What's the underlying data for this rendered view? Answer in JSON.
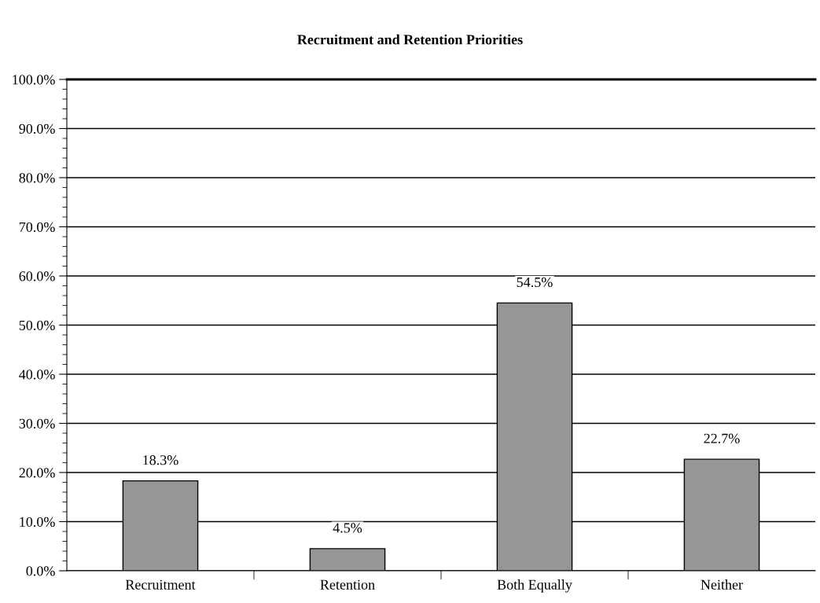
{
  "chart_data": {
    "type": "bar",
    "title": "Recruitment and Retention Priorities",
    "categories": [
      "Recruitment",
      "Retention",
      "Both Equally",
      "Neither"
    ],
    "values": [
      18.3,
      4.5,
      54.5,
      22.7
    ],
    "value_labels": [
      "18.3%",
      "4.5%",
      "54.5%",
      "22.7%"
    ],
    "color": "#969696",
    "ylim": [
      0,
      100
    ],
    "yticks": [
      {
        "value": 0,
        "label": "0.0%"
      },
      {
        "value": 2,
        "label": null
      },
      {
        "value": 4,
        "label": null
      },
      {
        "value": 6,
        "label": null
      },
      {
        "value": 8,
        "label": null
      },
      {
        "value": 10,
        "label": "10.0%"
      },
      {
        "value": 12,
        "label": null
      },
      {
        "value": 14,
        "label": null
      },
      {
        "value": 16,
        "label": null
      },
      {
        "value": 18,
        "label": null
      },
      {
        "value": 20,
        "label": "20.0%"
      },
      {
        "value": 22,
        "label": null
      },
      {
        "value": 24,
        "label": null
      },
      {
        "value": 26,
        "label": null
      },
      {
        "value": 28,
        "label": null
      },
      {
        "value": 30,
        "label": "30.0%"
      },
      {
        "value": 32,
        "label": null
      },
      {
        "value": 34,
        "label": null
      },
      {
        "value": 36,
        "label": null
      },
      {
        "value": 38,
        "label": null
      },
      {
        "value": 40,
        "label": "40.0%"
      },
      {
        "value": 42,
        "label": null
      },
      {
        "value": 44,
        "label": null
      },
      {
        "value": 46,
        "label": null
      },
      {
        "value": 48,
        "label": null
      },
      {
        "value": 50,
        "label": "50.0%"
      },
      {
        "value": 52,
        "label": null
      },
      {
        "value": 54,
        "label": null
      },
      {
        "value": 56,
        "label": null
      },
      {
        "value": 58,
        "label": null
      },
      {
        "value": 60,
        "label": "60.0%"
      },
      {
        "value": 62,
        "label": null
      },
      {
        "value": 64,
        "label": null
      },
      {
        "value": 66,
        "label": null
      },
      {
        "value": 68,
        "label": null
      },
      {
        "value": 70,
        "label": "70.0%"
      },
      {
        "value": 72,
        "label": null
      },
      {
        "value": 74,
        "label": null
      },
      {
        "value": 76,
        "label": null
      },
      {
        "value": 78,
        "label": null
      },
      {
        "value": 80,
        "label": "80.0%"
      },
      {
        "value": 82,
        "label": null
      },
      {
        "value": 84,
        "label": null
      },
      {
        "value": 86,
        "label": null
      },
      {
        "value": 88,
        "label": null
      },
      {
        "value": 90,
        "label": "90.0%"
      },
      {
        "value": 92,
        "label": null
      },
      {
        "value": 94,
        "label": null
      },
      {
        "value": 96,
        "label": null
      },
      {
        "value": 98,
        "label": null
      },
      {
        "value": 100,
        "label": "100.0%"
      }
    ],
    "grid": "y",
    "legend": false
  }
}
